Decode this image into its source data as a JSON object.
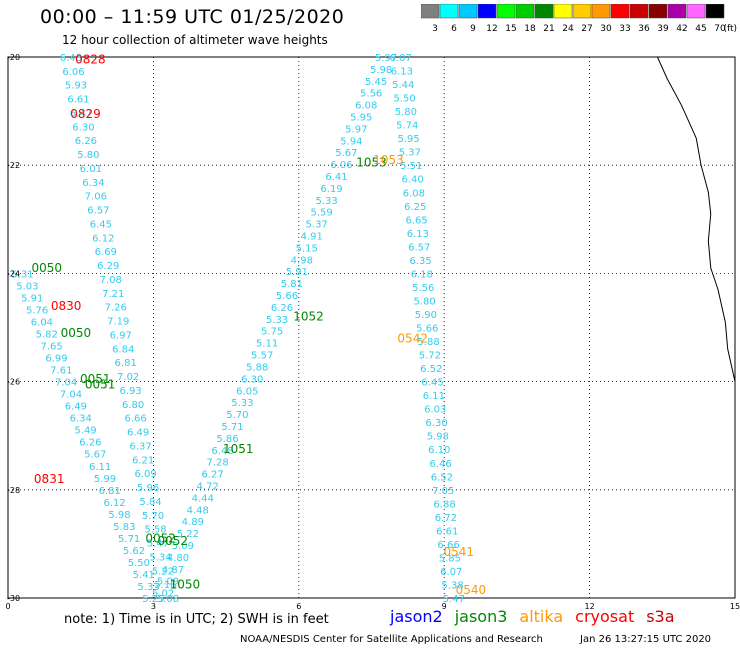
{
  "title": "00:00 – 11:59 UTC 01/25/2020",
  "subtitle": "12 hour collection of altimeter wave heights",
  "legend": {
    "unit": "(ft)",
    "bins": [
      {
        "color": "#808080",
        "label": "3"
      },
      {
        "color": "#00ffff",
        "label": "6"
      },
      {
        "color": "#00c8ff",
        "label": "9"
      },
      {
        "color": "#0000ff",
        "label": "12"
      },
      {
        "color": "#00ff00",
        "label": "15"
      },
      {
        "color": "#00cc00",
        "label": "18"
      },
      {
        "color": "#008800",
        "label": "21"
      },
      {
        "color": "#ffff00",
        "label": "24"
      },
      {
        "color": "#ffcc00",
        "label": "27"
      },
      {
        "color": "#ff9900",
        "label": "30"
      },
      {
        "color": "#ff0000",
        "label": "33"
      },
      {
        "color": "#cc0000",
        "label": "36"
      },
      {
        "color": "#880000",
        "label": "39"
      },
      {
        "color": "#aa00aa",
        "label": "42"
      },
      {
        "color": "#ff66ff",
        "label": "45"
      },
      {
        "color": "#000000",
        "label": "70"
      }
    ]
  },
  "axes": {
    "lon_ticks": [
      "0",
      "3",
      "6",
      "9",
      "12",
      "15"
    ],
    "lat_ticks": [
      "-20",
      "-22",
      "-24",
      "-26",
      "-28",
      "-30"
    ]
  },
  "colors": {
    "wave_text": "#33ccee",
    "jason2": "#0000ff",
    "jason3": "#008800",
    "altika": "#ff9900",
    "cryosat": "#ff0000",
    "s3a": "#cc0000"
  },
  "tracks": {
    "a": {
      "lat_start": -20,
      "lat_end": -30,
      "lon_start": 1.3,
      "lon_end": 3.3,
      "values": [
        "6.43",
        "6.06",
        "5.93",
        "6.61",
        "6.47",
        "6.30",
        "6.26",
        "5.80",
        "6.01",
        "6.34",
        "7.06",
        "6.57",
        "6.45",
        "6.12",
        "6.69",
        "6.29",
        "7.08",
        "7.21",
        "7.26",
        "7.19",
        "6.97",
        "6.84",
        "6.81",
        "7.02",
        "6.93",
        "6.80",
        "6.66",
        "6.49",
        "6.37",
        "6.21",
        "6.09",
        "5.96",
        "5.84",
        "5.70",
        "5.58",
        "5.47",
        "5.34",
        "5.22",
        "5.16",
        "5.08"
      ]
    },
    "b": {
      "lat_start": -24,
      "lat_end": -30,
      "lon_start": 0.3,
      "lon_end": 3.0,
      "values": [
        "5.31",
        "5.03",
        "5.91",
        "5.76",
        "6.04",
        "5.82",
        "7.65",
        "6.99",
        "7.61",
        "7.04",
        "7.04",
        "6.49",
        "6.34",
        "5.49",
        "6.26",
        "5.67",
        "6.11",
        "5.99",
        "6.81",
        "6.12",
        "5.98",
        "5.83",
        "5.71",
        "5.62",
        "5.50",
        "5.41",
        "5.33",
        "5.25"
      ]
    },
    "c": {
      "lat_start": -29.9,
      "lat_end": -20,
      "lon_start": 3.2,
      "lon_end": 7.8,
      "values": [
        "5.02",
        "5.09",
        "4.87",
        "4.80",
        "5.09",
        "5.22",
        "4.89",
        "4.48",
        "4.44",
        "4.72",
        "6.27",
        "7.28",
        "6.48",
        "5.86",
        "5.71",
        "5.70",
        "5.33",
        "6.05",
        "6.30",
        "5.88",
        "5.57",
        "5.11",
        "5.75",
        "5.33",
        "6.26",
        "5.66",
        "5.81",
        "5.91",
        "4.98",
        "5.15",
        "4.91",
        "5.37",
        "5.59",
        "5.33",
        "6.19",
        "6.41",
        "6.06",
        "5.67",
        "5.94",
        "5.97",
        "5.95",
        "6.08",
        "5.56",
        "5.45",
        "5.98",
        "5.97"
      ]
    },
    "d": {
      "lat_start": -20,
      "lat_end": -30,
      "lon_start": 8.1,
      "lon_end": 9.2,
      "values": [
        "6.07",
        "6.13",
        "5.44",
        "5.50",
        "5.80",
        "5.74",
        "5.95",
        "5.37",
        "5.51",
        "6.40",
        "6.08",
        "6.25",
        "6.65",
        "6.13",
        "6.57",
        "6.35",
        "6.18",
        "5.56",
        "5.80",
        "5.90",
        "5.66",
        "5.88",
        "5.72",
        "6.52",
        "6.45",
        "6.11",
        "6.03",
        "6.30",
        "5.98",
        "6.10",
        "6.46",
        "6.52",
        "7.05",
        "6.88",
        "6.72",
        "6.61",
        "6.66",
        "5.85",
        "6.07",
        "5.38",
        "5.47"
      ]
    }
  },
  "passes": [
    {
      "label": "0828",
      "sat": "cryosat",
      "lat": -20.05,
      "lon": 1.7
    },
    {
      "label": "0829",
      "sat": "cryosat",
      "lat": -21.05,
      "lon": 1.6
    },
    {
      "label": "0830",
      "sat": "cryosat",
      "lat": -24.6,
      "lon": 1.2
    },
    {
      "label": "0831",
      "sat": "cryosat",
      "lat": -27.8,
      "lon": 0.85
    },
    {
      "label": "0050",
      "sat": "jason3",
      "lat": -23.9,
      "lon": 0.8
    },
    {
      "label": "0050",
      "sat": "jason3",
      "lat": -25.1,
      "lon": 1.4
    },
    {
      "label": "0051",
      "sat": "jason3",
      "lat": -25.95,
      "lon": 1.8
    },
    {
      "label": "0051",
      "sat": "jason3",
      "lat": -26.05,
      "lon": 1.9
    },
    {
      "label": "0052",
      "sat": "jason3",
      "lat": -28.9,
      "lon": 3.15
    },
    {
      "label": "0052",
      "sat": "jason3",
      "lat": -28.95,
      "lon": 3.4
    },
    {
      "label": "1050",
      "sat": "jason3",
      "lat": -29.75,
      "lon": 3.65
    },
    {
      "label": "1051",
      "sat": "jason3",
      "lat": -27.25,
      "lon": 4.75
    },
    {
      "label": "1052",
      "sat": "jason3",
      "lat": -24.8,
      "lon": 6.2
    },
    {
      "label": "1053",
      "sat": "jason3",
      "lat": -21.95,
      "lon": 7.5
    },
    {
      "label": "0542",
      "sat": "altika",
      "lat": -25.2,
      "lon": 8.35
    },
    {
      "label": "0541",
      "sat": "altika",
      "lat": -29.15,
      "lon": 9.3
    },
    {
      "label": "0540",
      "sat": "altika",
      "lat": -29.85,
      "lon": 9.55
    },
    {
      "label": "1053",
      "sat": "altika",
      "lat": -21.9,
      "lon": 7.85
    }
  ],
  "footer": {
    "note": "note:  1) Time is in UTC;  2) SWH is in feet",
    "sats": [
      {
        "key": "jason2",
        "label": "jason2"
      },
      {
        "key": "jason3",
        "label": "jason3"
      },
      {
        "key": "altika",
        "label": "altika"
      },
      {
        "key": "cryosat",
        "label": "cryosat"
      },
      {
        "key": "s3a",
        "label": "s3a"
      }
    ],
    "credit": "NOAA/NESDIS Center for Satellite Applications and Research",
    "timestamp": "Jan 26 13:27:15 UTC 2020"
  }
}
